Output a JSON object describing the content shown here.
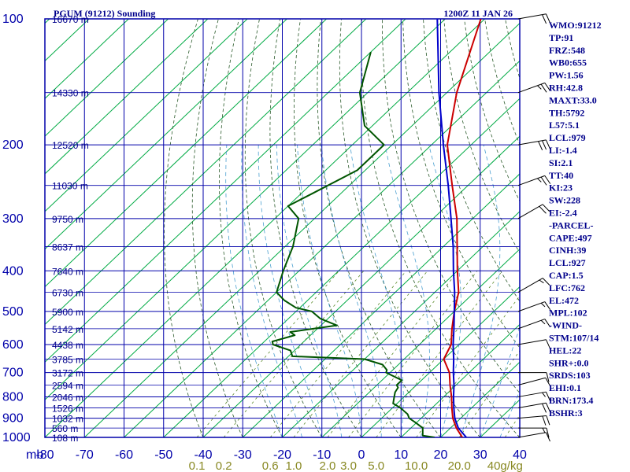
{
  "header": {
    "title": "PGUM (91212) Sounding",
    "time": "1200Z 11 JAN 26"
  },
  "colors": {
    "frame": "#0000aa",
    "isotherm": "#00aa44",
    "dry_adiabat": "#2a5a2a",
    "moist_adiabat": "#4a9fd0",
    "mixing_ratio": "#5a8a2a",
    "temperature": "#cc0000",
    "dewpoint": "#005500",
    "parcel": "#0000cc",
    "text": "#00008b",
    "mixing_label": "#888822"
  },
  "chart_data": {
    "type": "line",
    "title": "PGUM (91212) Sounding",
    "subtitle": "1200Z 11 JAN 26",
    "yscale": "log",
    "ylim": [
      1000,
      100
    ],
    "xlim": [
      -80,
      40
    ],
    "y_unit_label": "mb",
    "pressure_ticks": [
      100,
      200,
      300,
      400,
      500,
      600,
      700,
      800,
      900,
      1000
    ],
    "temp_ticks": [
      -80,
      -70,
      -60,
      -50,
      -40,
      -30,
      -20,
      -10,
      0,
      10,
      20,
      30,
      40
    ],
    "height_labels": [
      {
        "p": 100,
        "label": "16670 m"
      },
      {
        "p": 150,
        "label": "14330 m"
      },
      {
        "p": 200,
        "label": "12520 m"
      },
      {
        "p": 250,
        "label": "11030 m"
      },
      {
        "p": 300,
        "label": "9750 m"
      },
      {
        "p": 350,
        "label": "8637 m"
      },
      {
        "p": 400,
        "label": "7640 m"
      },
      {
        "p": 450,
        "label": "6730 m"
      },
      {
        "p": 500,
        "label": "5900 m"
      },
      {
        "p": 550,
        "label": "5142 m"
      },
      {
        "p": 600,
        "label": "4438 m"
      },
      {
        "p": 650,
        "label": "3785 m"
      },
      {
        "p": 700,
        "label": "3172 m"
      },
      {
        "p": 750,
        "label": "2594 m"
      },
      {
        "p": 800,
        "label": "2046 m"
      },
      {
        "p": 850,
        "label": "1526 m"
      },
      {
        "p": 900,
        "label": "1032 m"
      },
      {
        "p": 950,
        "label": "560 m"
      },
      {
        "p": 1000,
        "label": "108 m"
      }
    ],
    "mixing_ratio_labels": [
      "0.1",
      "0.2",
      "0.6",
      "1.0",
      "2.0",
      "3.0",
      "5.0",
      "10.0",
      "20.0",
      "40g/kg"
    ],
    "mixing_ratio_values": [
      0.1,
      0.2,
      0.6,
      1.0,
      2.0,
      3.0,
      5.0,
      10.0,
      20.0,
      40.0
    ],
    "series": [
      {
        "name": "temperature",
        "points": [
          [
            1000,
            25.5
          ],
          [
            950,
            21.5
          ],
          [
            900,
            18.0
          ],
          [
            850,
            15.0
          ],
          [
            800,
            12.0
          ],
          [
            750,
            8.5
          ],
          [
            700,
            5.0
          ],
          [
            650,
            0.0
          ],
          [
            600,
            -2.0
          ],
          [
            550,
            -6.0
          ],
          [
            500,
            -10.0
          ],
          [
            450,
            -14.0
          ],
          [
            400,
            -20.0
          ],
          [
            350,
            -26.5
          ],
          [
            300,
            -34.0
          ],
          [
            250,
            -44.0
          ],
          [
            200,
            -56.0
          ],
          [
            150,
            -67.5
          ],
          [
            100,
            -81.0
          ]
        ]
      },
      {
        "name": "dewpoint",
        "points": [
          [
            1000,
            18.5
          ],
          [
            990,
            15.0
          ],
          [
            950,
            13.0
          ],
          [
            920,
            9.5
          ],
          [
            900,
            7.0
          ],
          [
            880,
            5.5
          ],
          [
            850,
            2.0
          ],
          [
            830,
            -1.0
          ],
          [
            800,
            -2.5
          ],
          [
            780,
            -3.5
          ],
          [
            760,
            -4.0
          ],
          [
            750,
            -5.0
          ],
          [
            730,
            -5.0
          ],
          [
            700,
            -11.0
          ],
          [
            690,
            -11.5
          ],
          [
            670,
            -14.0
          ],
          [
            660,
            -17.0
          ],
          [
            650,
            -20.0
          ],
          [
            640,
            -39.0
          ],
          [
            620,
            -41.0
          ],
          [
            600,
            -47.0
          ],
          [
            590,
            -48.0
          ],
          [
            570,
            -44.0
          ],
          [
            560,
            -46.0
          ],
          [
            540,
            -36.0
          ],
          [
            520,
            -42.0
          ],
          [
            500,
            -46.0
          ],
          [
            490,
            -51.0
          ],
          [
            470,
            -56.0
          ],
          [
            450,
            -60.0
          ],
          [
            400,
            -64.0
          ],
          [
            350,
            -68.0
          ],
          [
            300,
            -74.0
          ],
          [
            280,
            -80.0
          ],
          [
            260,
            -77.0
          ],
          [
            230,
            -72.0
          ],
          [
            200,
            -72.0
          ],
          [
            180,
            -82.0
          ],
          [
            150,
            -92.0
          ],
          [
            120,
            -100.0
          ]
        ]
      },
      {
        "name": "parcel",
        "points": [
          [
            1000,
            26.5
          ],
          [
            950,
            22.0
          ],
          [
            900,
            18.5
          ],
          [
            850,
            15.5
          ],
          [
            800,
            12.5
          ],
          [
            750,
            9.5
          ],
          [
            700,
            6.0
          ],
          [
            650,
            2.5
          ],
          [
            600,
            -1.5
          ],
          [
            550,
            -5.5
          ],
          [
            500,
            -10.0
          ],
          [
            450,
            -15.0
          ],
          [
            400,
            -21.0
          ],
          [
            350,
            -27.5
          ],
          [
            300,
            -35.5
          ],
          [
            250,
            -45.0
          ],
          [
            200,
            -57.0
          ],
          [
            150,
            -72.0
          ],
          [
            100,
            -92.0
          ]
        ]
      }
    ],
    "wind_barbs": [
      {
        "p": 1000,
        "dir": 80,
        "spd": 10
      },
      {
        "p": 950,
        "dir": 90,
        "spd": 15
      },
      {
        "p": 900,
        "dir": 85,
        "spd": 20
      },
      {
        "p": 850,
        "dir": 80,
        "spd": 20
      },
      {
        "p": 800,
        "dir": 80,
        "spd": 15
      },
      {
        "p": 750,
        "dir": 75,
        "spd": 10
      },
      {
        "p": 700,
        "dir": 90,
        "spd": 10
      },
      {
        "p": 600,
        "dir": 80,
        "spd": 10
      },
      {
        "p": 550,
        "dir": 70,
        "spd": 15
      },
      {
        "p": 500,
        "dir": 70,
        "spd": 15
      },
      {
        "p": 450,
        "dir": 60,
        "spd": 15
      },
      {
        "p": 300,
        "dir": 60,
        "spd": 20
      },
      {
        "p": 250,
        "dir": 70,
        "spd": 25
      },
      {
        "p": 200,
        "dir": 80,
        "spd": 30
      },
      {
        "p": 150,
        "dir": 70,
        "spd": 25
      },
      {
        "p": 100,
        "dir": 80,
        "spd": 20
      }
    ]
  },
  "indices": [
    "WMO:91212",
    "TP:91",
    "FRZ:548",
    "WB0:655",
    "PW:1.56",
    "RH:42.8",
    "MAXT:33.0",
    "TH:5792",
    "L57:5.1",
    "LCL:979",
    "LI:-1.4",
    "SI:2.1",
    "TT:40",
    "KI:23",
    "SW:228",
    "EI:-2.4",
    "-PARCEL-",
    "CAPE:497",
    "CINH:39",
    "LCL:927",
    "CAP:1.5",
    "LFC:762",
    "EL:472",
    "MPL:102",
    "-WIND-",
    "STM:107/14",
    "HEL:22",
    "SHR+:0.0",
    "SRDS:103",
    "EHI:0.1",
    "BRN:173.4",
    "BSHR:3"
  ]
}
